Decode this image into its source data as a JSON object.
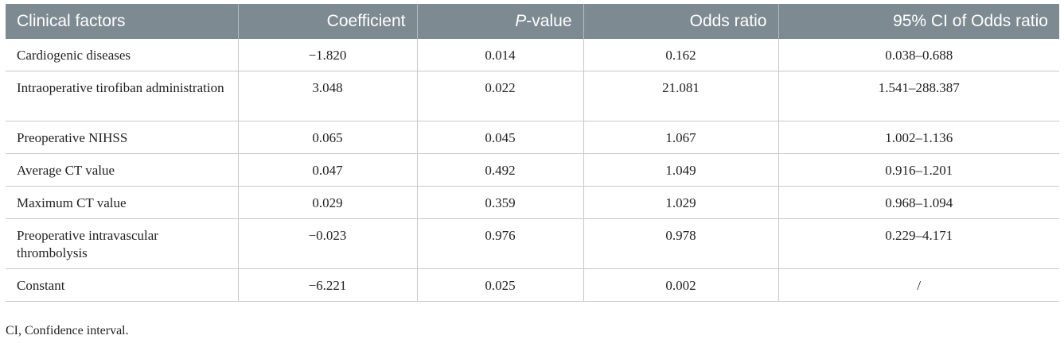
{
  "table": {
    "headers": {
      "factor": "Clinical factors",
      "coefficient": "Coefficient",
      "p_italic": "P",
      "p_suffix": "-value",
      "odds": "Odds ratio",
      "ci": "95% CI of Odds ratio"
    },
    "rows": [
      {
        "factor": "Cardiogenic diseases",
        "coefficient": "−1.820",
        "p": "0.014",
        "odds": "0.162",
        "ci": "0.038–0.688"
      },
      {
        "factor": "Intraoperative tirofiban administration",
        "coefficient": "3.048",
        "p": "0.022",
        "odds": "21.081",
        "ci": "1.541–288.387"
      },
      {
        "factor": "Preoperative NIHSS",
        "coefficient": "0.065",
        "p": "0.045",
        "odds": "1.067",
        "ci": "1.002–1.136"
      },
      {
        "factor": "Average CT value",
        "coefficient": "0.047",
        "p": "0.492",
        "odds": "1.049",
        "ci": "0.916–1.201"
      },
      {
        "factor": "Maximum CT value",
        "coefficient": "0.029",
        "p": "0.359",
        "odds": "1.029",
        "ci": "0.968–1.094"
      },
      {
        "factor": "Preoperative intravascular thrombolysis",
        "coefficient": "−0.023",
        "p": "0.976",
        "odds": "0.978",
        "ci": "0.229–4.171"
      },
      {
        "factor": "Constant",
        "coefficient": "−6.221",
        "p": "0.025",
        "odds": "0.002",
        "ci": "/"
      }
    ]
  },
  "footnote": "CI, Confidence interval."
}
